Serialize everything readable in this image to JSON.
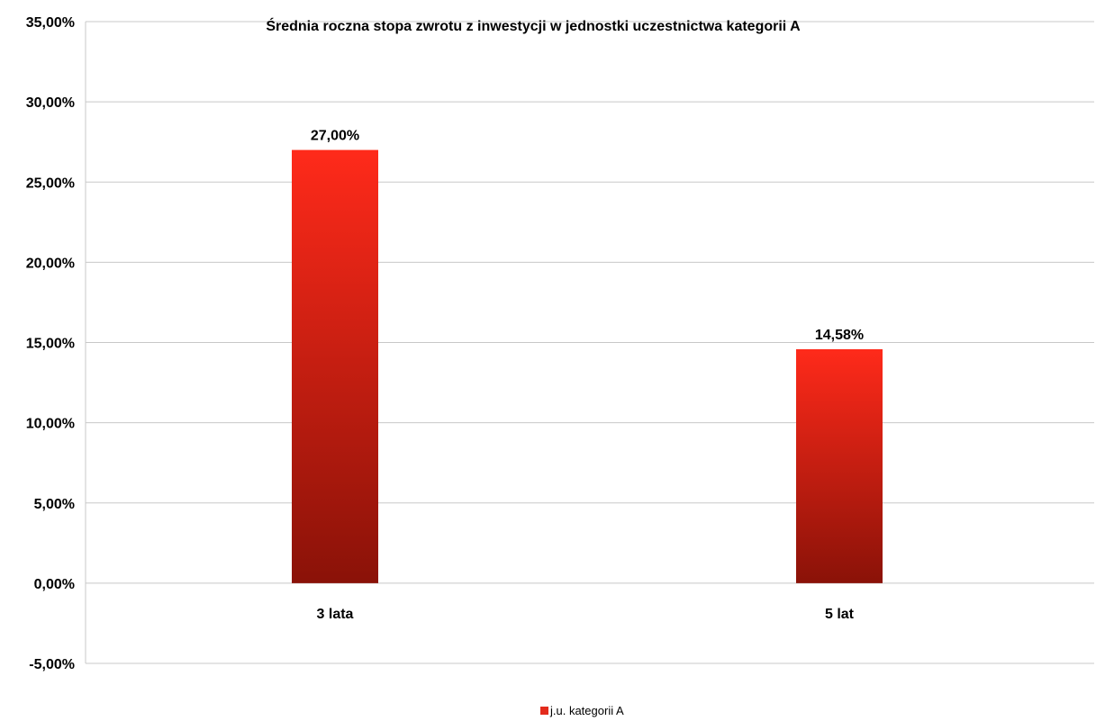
{
  "chart_data": {
    "type": "bar",
    "title": "Średnia roczna stopa zwrotu z inwestycji w jednostki uczestnictwa kategorii A",
    "categories": [
      "3 lata",
      "5 lat"
    ],
    "series": [
      {
        "name": "j.u. kategorii A",
        "values": [
          27.0,
          14.58
        ],
        "labels": [
          "27,00%",
          "14,58%"
        ]
      }
    ],
    "ylim": [
      -5,
      35
    ],
    "yticks": [
      35,
      30,
      25,
      20,
      15,
      10,
      5,
      0,
      -5
    ],
    "ytick_labels": [
      "35,00%",
      "30,00%",
      "25,00%",
      "20,00%",
      "15,00%",
      "10,00%",
      "5,00%",
      "0,00%",
      "-5,00%"
    ],
    "xlabel": "",
    "ylabel": "",
    "grid": true,
    "legend_position": "bottom",
    "colors": {
      "bar_top": "#ff2a1a",
      "bar_bottom": "#8a1208",
      "grid": "#c8c8c8"
    }
  }
}
